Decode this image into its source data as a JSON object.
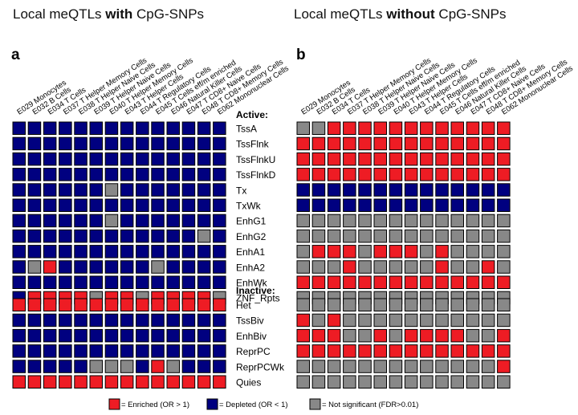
{
  "titles": {
    "left_prefix": "Local meQTLs ",
    "left_bold": "with",
    "left_suffix": " CpG-SNPs",
    "right_prefix": "Local meQTLs ",
    "right_bold": "without",
    "right_suffix": " CpG-SNPs"
  },
  "panel_labels": {
    "left": "a",
    "right": "b"
  },
  "colors": {
    "enriched": "#ee1c24",
    "depleted": "#000080",
    "not_significant": "#888888"
  },
  "chart_data": {
    "type": "heatmap",
    "columns": [
      "E029 Monocytes",
      "E032 B Cells",
      "E034 T Cells",
      "E037 T Helper Memory Cells",
      "E038 T Helper Naive Cells",
      "E039 T Helper Naive Cells",
      "E040 T Helper Memory Cells",
      "E043 T Helper Cells",
      "E044 T Regulatory Cells",
      "E045 T Cells eff/m enriched",
      "E046 Natural Killer Cells",
      "E047 T CD8+ Naive Cells",
      "E048 T CD8+ Memory Cells",
      "E062 Mononuclear Cells"
    ],
    "groups": [
      {
        "name": "Active:",
        "rows": [
          "TssA",
          "TssFlnk",
          "TssFlnkU",
          "TssFlnkD",
          "Tx",
          "TxWk",
          "EnhG1",
          "EnhG2",
          "EnhA1",
          "EnhA2",
          "EnhWk",
          "ZNF_Rpts"
        ]
      },
      {
        "name": "Inactive:",
        "rows": [
          "Het",
          "TssBiv",
          "EnhBiv",
          "ReprPC",
          "ReprPCWk",
          "Quies"
        ]
      }
    ],
    "legend": [
      {
        "key": "E",
        "label": "= Enriched (OR > 1)"
      },
      {
        "key": "D",
        "label": "= Depleted (OR < 1)"
      },
      {
        "key": "N",
        "label": "= Not significant (FDR>0.01)"
      }
    ],
    "legend_placement": "bottom",
    "panels": [
      {
        "name": "with CpG-SNPs",
        "cells": [
          "DDDDDDDDDDDDDD",
          "DDDDDDDDDDDDDD",
          "DDDDDDDDDDDDDD",
          "DDDDDDDDDDDDDD",
          "DDDDDDNDDDDDDD",
          "DDDDDDDDDDDDDD",
          "DDDDDDNDDDDDDD",
          "DDDDDDDDDDDDND",
          "DDDDDDDDDDDDDD",
          "DNEDDDDDDNDDDD",
          "DDDDDDDDDDDDDD",
          "DEEEENEENEEEEN",
          "EEEEEEEEEEEEEE",
          "DDDDDDDDDDDDDD",
          "DDDDDDDDDDDDDD",
          "DDDDDDDDDDDDDD",
          "DDDDDNNNDENDDD",
          "EEEEEEEEEEEEEE"
        ]
      },
      {
        "name": "without CpG-SNPs",
        "cells": [
          "NNEEEEEEEEEEEE",
          "EEEEEEEEEEEEEE",
          "EEEEEEEEEEEEEE",
          "EEEEEEEEEEEEEE",
          "DDDDDDDDDDDDDD",
          "DDDDDDDDDDDDDD",
          "NNNNNNNNNNNNNN",
          "NNNNNNNNNNNNNN",
          "NEEENEEENENNNN",
          "NNNENNNNNENNEN",
          "EEEEEEEEEEEEEE",
          "NNNNNNNNNNNNNN",
          "NNNNNNNNNNNNNN",
          "ENENNNNNNNNNNN",
          "EEENNENEEEENNE",
          "EEEEEEEEEEEEEE",
          "NNNNNNNNNNNNNE",
          "NNNNNNNNNNNNNN"
        ]
      }
    ]
  }
}
